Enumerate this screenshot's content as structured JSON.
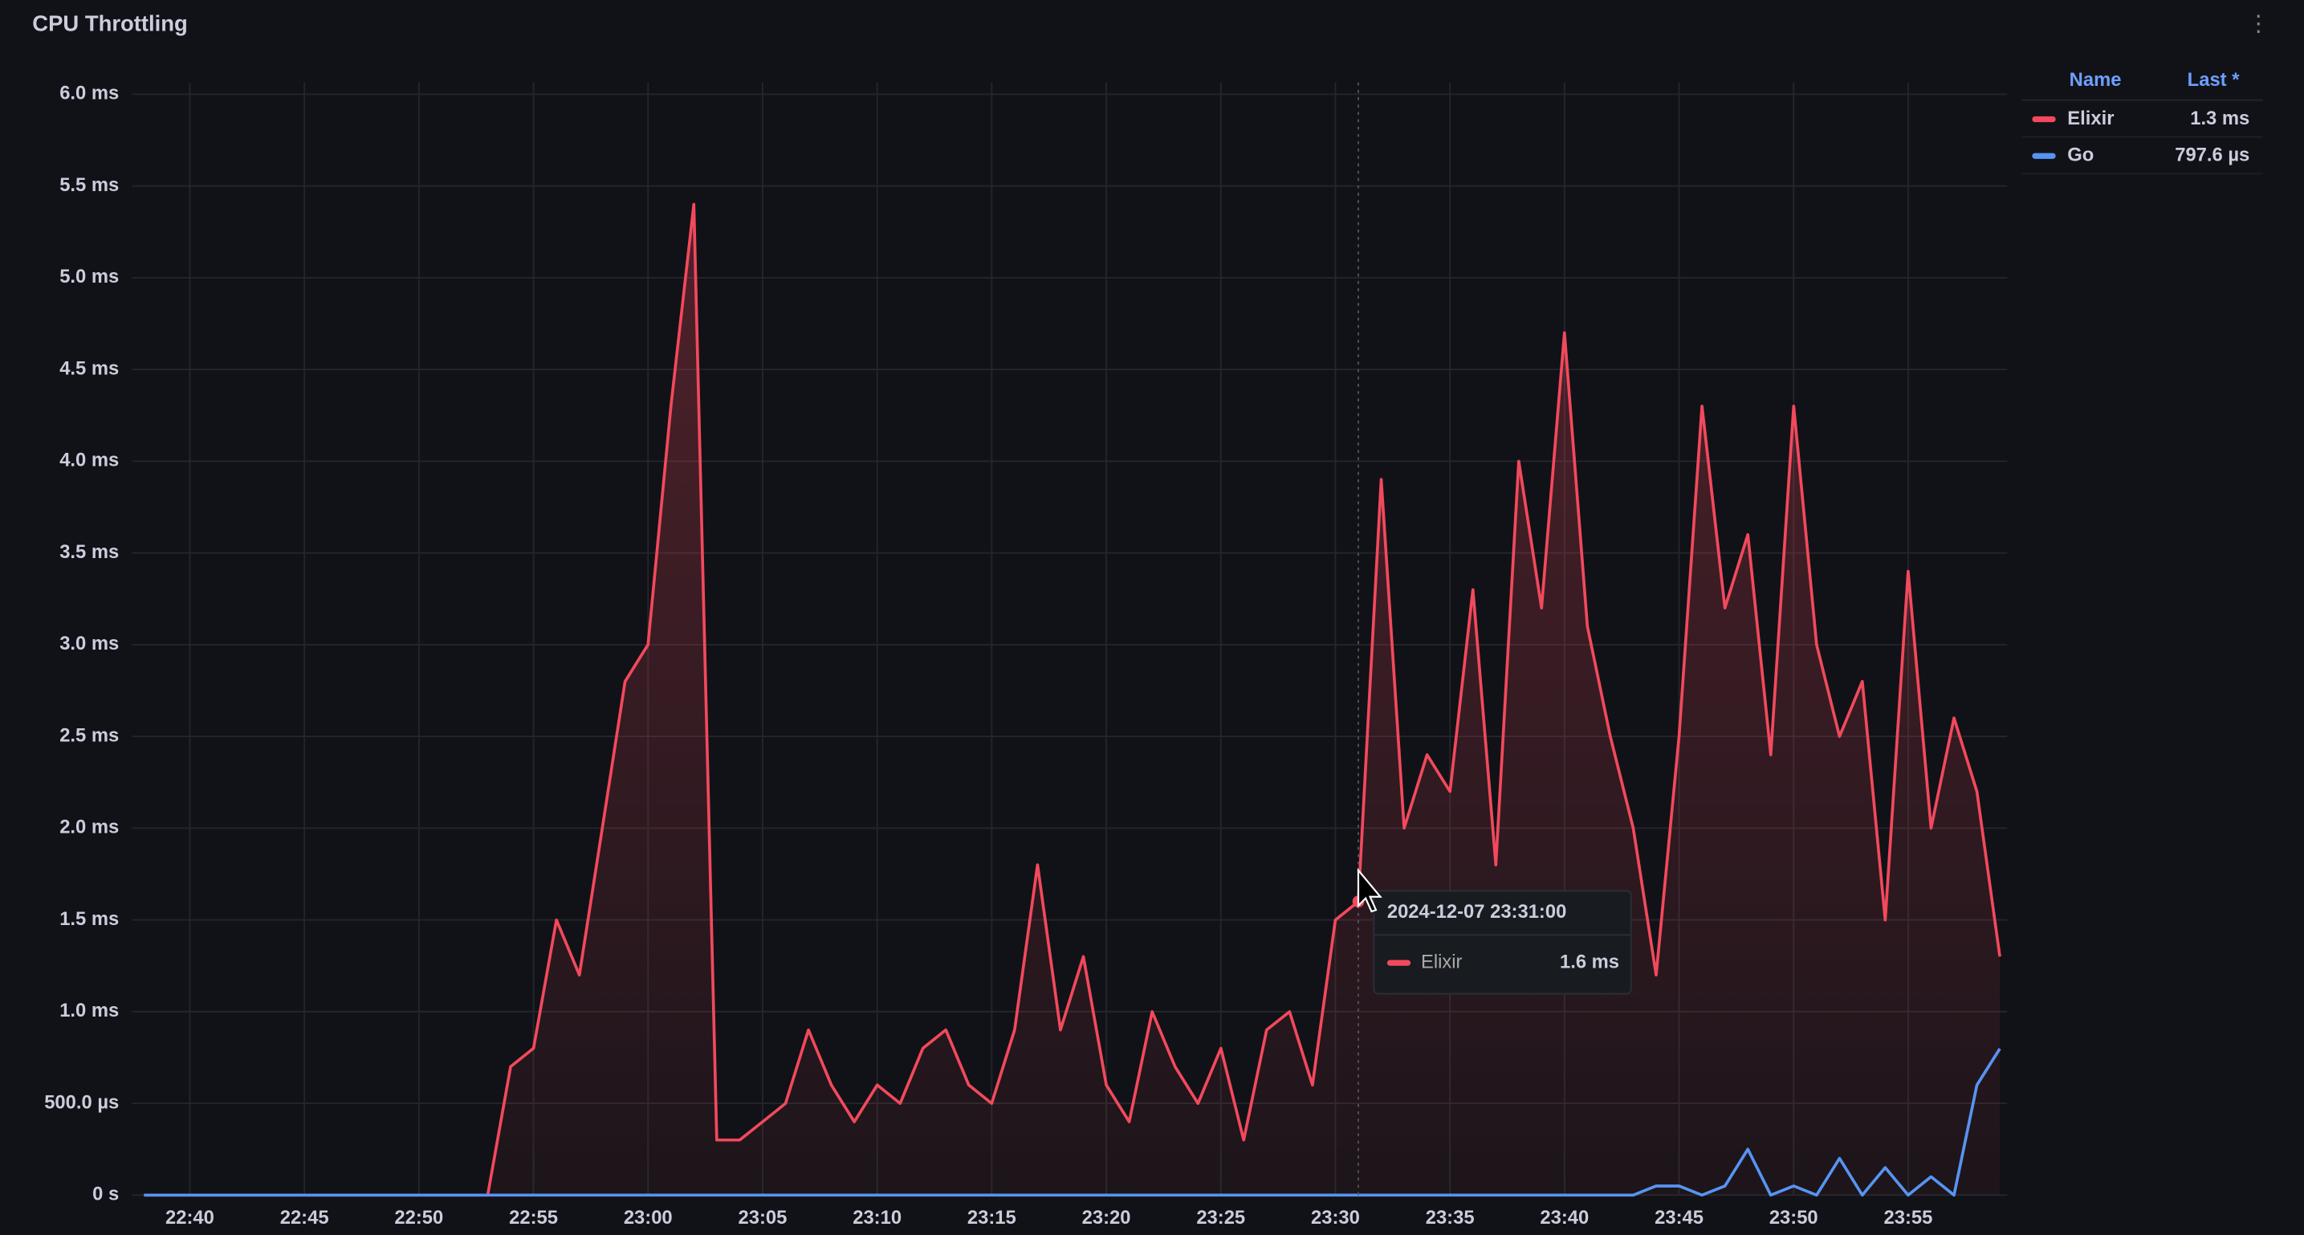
{
  "panel_title": "CPU Throttling",
  "chart_data": {
    "type": "line",
    "x": [
      "22:38",
      "22:39",
      "22:40",
      "22:41",
      "22:42",
      "22:43",
      "22:44",
      "22:45",
      "22:46",
      "22:47",
      "22:48",
      "22:49",
      "22:50",
      "22:51",
      "22:52",
      "22:53",
      "22:54",
      "22:55",
      "22:56",
      "22:57",
      "22:58",
      "22:59",
      "23:00",
      "23:01",
      "23:02",
      "23:03",
      "23:04",
      "23:05",
      "23:06",
      "23:07",
      "23:08",
      "23:09",
      "23:10",
      "23:11",
      "23:12",
      "23:13",
      "23:14",
      "23:15",
      "23:16",
      "23:17",
      "23:18",
      "23:19",
      "23:20",
      "23:21",
      "23:22",
      "23:23",
      "23:24",
      "23:25",
      "23:26",
      "23:27",
      "23:28",
      "23:29",
      "23:30",
      "23:31",
      "23:32",
      "23:33",
      "23:34",
      "23:35",
      "23:36",
      "23:37",
      "23:38",
      "23:39",
      "23:40",
      "23:41",
      "23:42",
      "23:43",
      "23:44",
      "23:45",
      "23:46",
      "23:47",
      "23:48",
      "23:49",
      "23:50",
      "23:51",
      "23:52",
      "23:53",
      "23:54",
      "23:55",
      "23:56",
      "23:57",
      "23:58",
      "23:59"
    ],
    "series": [
      {
        "name": "Elixir",
        "color": "#f2495c",
        "last_label": "1.3 ms",
        "values": [
          0,
          0,
          0,
          0,
          0,
          0,
          0,
          0,
          0,
          0,
          0,
          0,
          0,
          0,
          0,
          0,
          0.7,
          0.8,
          1.5,
          1.2,
          2.0,
          2.8,
          3.0,
          4.3,
          5.4,
          0.3,
          0.3,
          0.4,
          0.5,
          0.9,
          0.6,
          0.4,
          0.6,
          0.5,
          0.8,
          0.9,
          0.6,
          0.5,
          0.9,
          1.8,
          0.9,
          1.3,
          0.6,
          0.4,
          1.0,
          0.7,
          0.5,
          0.8,
          0.3,
          0.9,
          1.0,
          0.6,
          1.5,
          1.6,
          3.9,
          2.0,
          2.4,
          2.2,
          3.3,
          1.8,
          4.0,
          3.2,
          4.7,
          3.1,
          2.5,
          2.0,
          1.2,
          2.5,
          4.3,
          3.2,
          3.6,
          2.4,
          4.3,
          3.0,
          2.5,
          2.8,
          1.5,
          3.4,
          2.0,
          2.6,
          2.2,
          1.3
        ]
      },
      {
        "name": "Go",
        "color": "#5794f2",
        "last_label": "797.6 µs",
        "values": [
          0,
          0,
          0,
          0,
          0,
          0,
          0,
          0,
          0,
          0,
          0,
          0,
          0,
          0,
          0,
          0,
          0,
          0,
          0,
          0,
          0,
          0,
          0,
          0,
          0,
          0,
          0,
          0,
          0,
          0,
          0,
          0,
          0,
          0,
          0,
          0,
          0,
          0,
          0,
          0,
          0,
          0,
          0,
          0,
          0,
          0,
          0,
          0,
          0,
          0,
          0,
          0,
          0,
          0,
          0,
          0,
          0,
          0,
          0,
          0,
          0,
          0,
          0,
          0,
          0,
          0,
          0.05,
          0.05,
          0,
          0.05,
          0.25,
          0,
          0.05,
          0,
          0.2,
          0,
          0.15,
          0,
          0.1,
          0,
          0.6,
          0.7976
        ]
      }
    ],
    "xlim": [
      "22:38",
      "23:59"
    ],
    "xticks": [
      "22:40",
      "22:45",
      "22:50",
      "22:55",
      "23:00",
      "23:05",
      "23:10",
      "23:15",
      "23:20",
      "23:25",
      "23:30",
      "23:35",
      "23:40",
      "23:45",
      "23:50",
      "23:55"
    ],
    "ylim": [
      0,
      6
    ],
    "yticks": [
      {
        "value": 0,
        "label": "0 s"
      },
      {
        "value": 0.5,
        "label": "500.0 µs"
      },
      {
        "value": 1,
        "label": "1.0 ms"
      },
      {
        "value": 1.5,
        "label": "1.5 ms"
      },
      {
        "value": 2,
        "label": "2.0 ms"
      },
      {
        "value": 2.5,
        "label": "2.5 ms"
      },
      {
        "value": 3,
        "label": "3.0 ms"
      },
      {
        "value": 3.5,
        "label": "3.5 ms"
      },
      {
        "value": 4,
        "label": "4.0 ms"
      },
      {
        "value": 4.5,
        "label": "4.5 ms"
      },
      {
        "value": 5,
        "label": "5.0 ms"
      },
      {
        "value": 5.5,
        "label": "5.5 ms"
      },
      {
        "value": 6,
        "label": "6.0 ms"
      }
    ],
    "grid": true,
    "legend": {
      "name_header": "Name",
      "last_header": "Last *"
    },
    "tooltip": {
      "time": "2024-12-07 23:31:00",
      "series": "Elixir",
      "value_label": "1.6 ms"
    }
  }
}
